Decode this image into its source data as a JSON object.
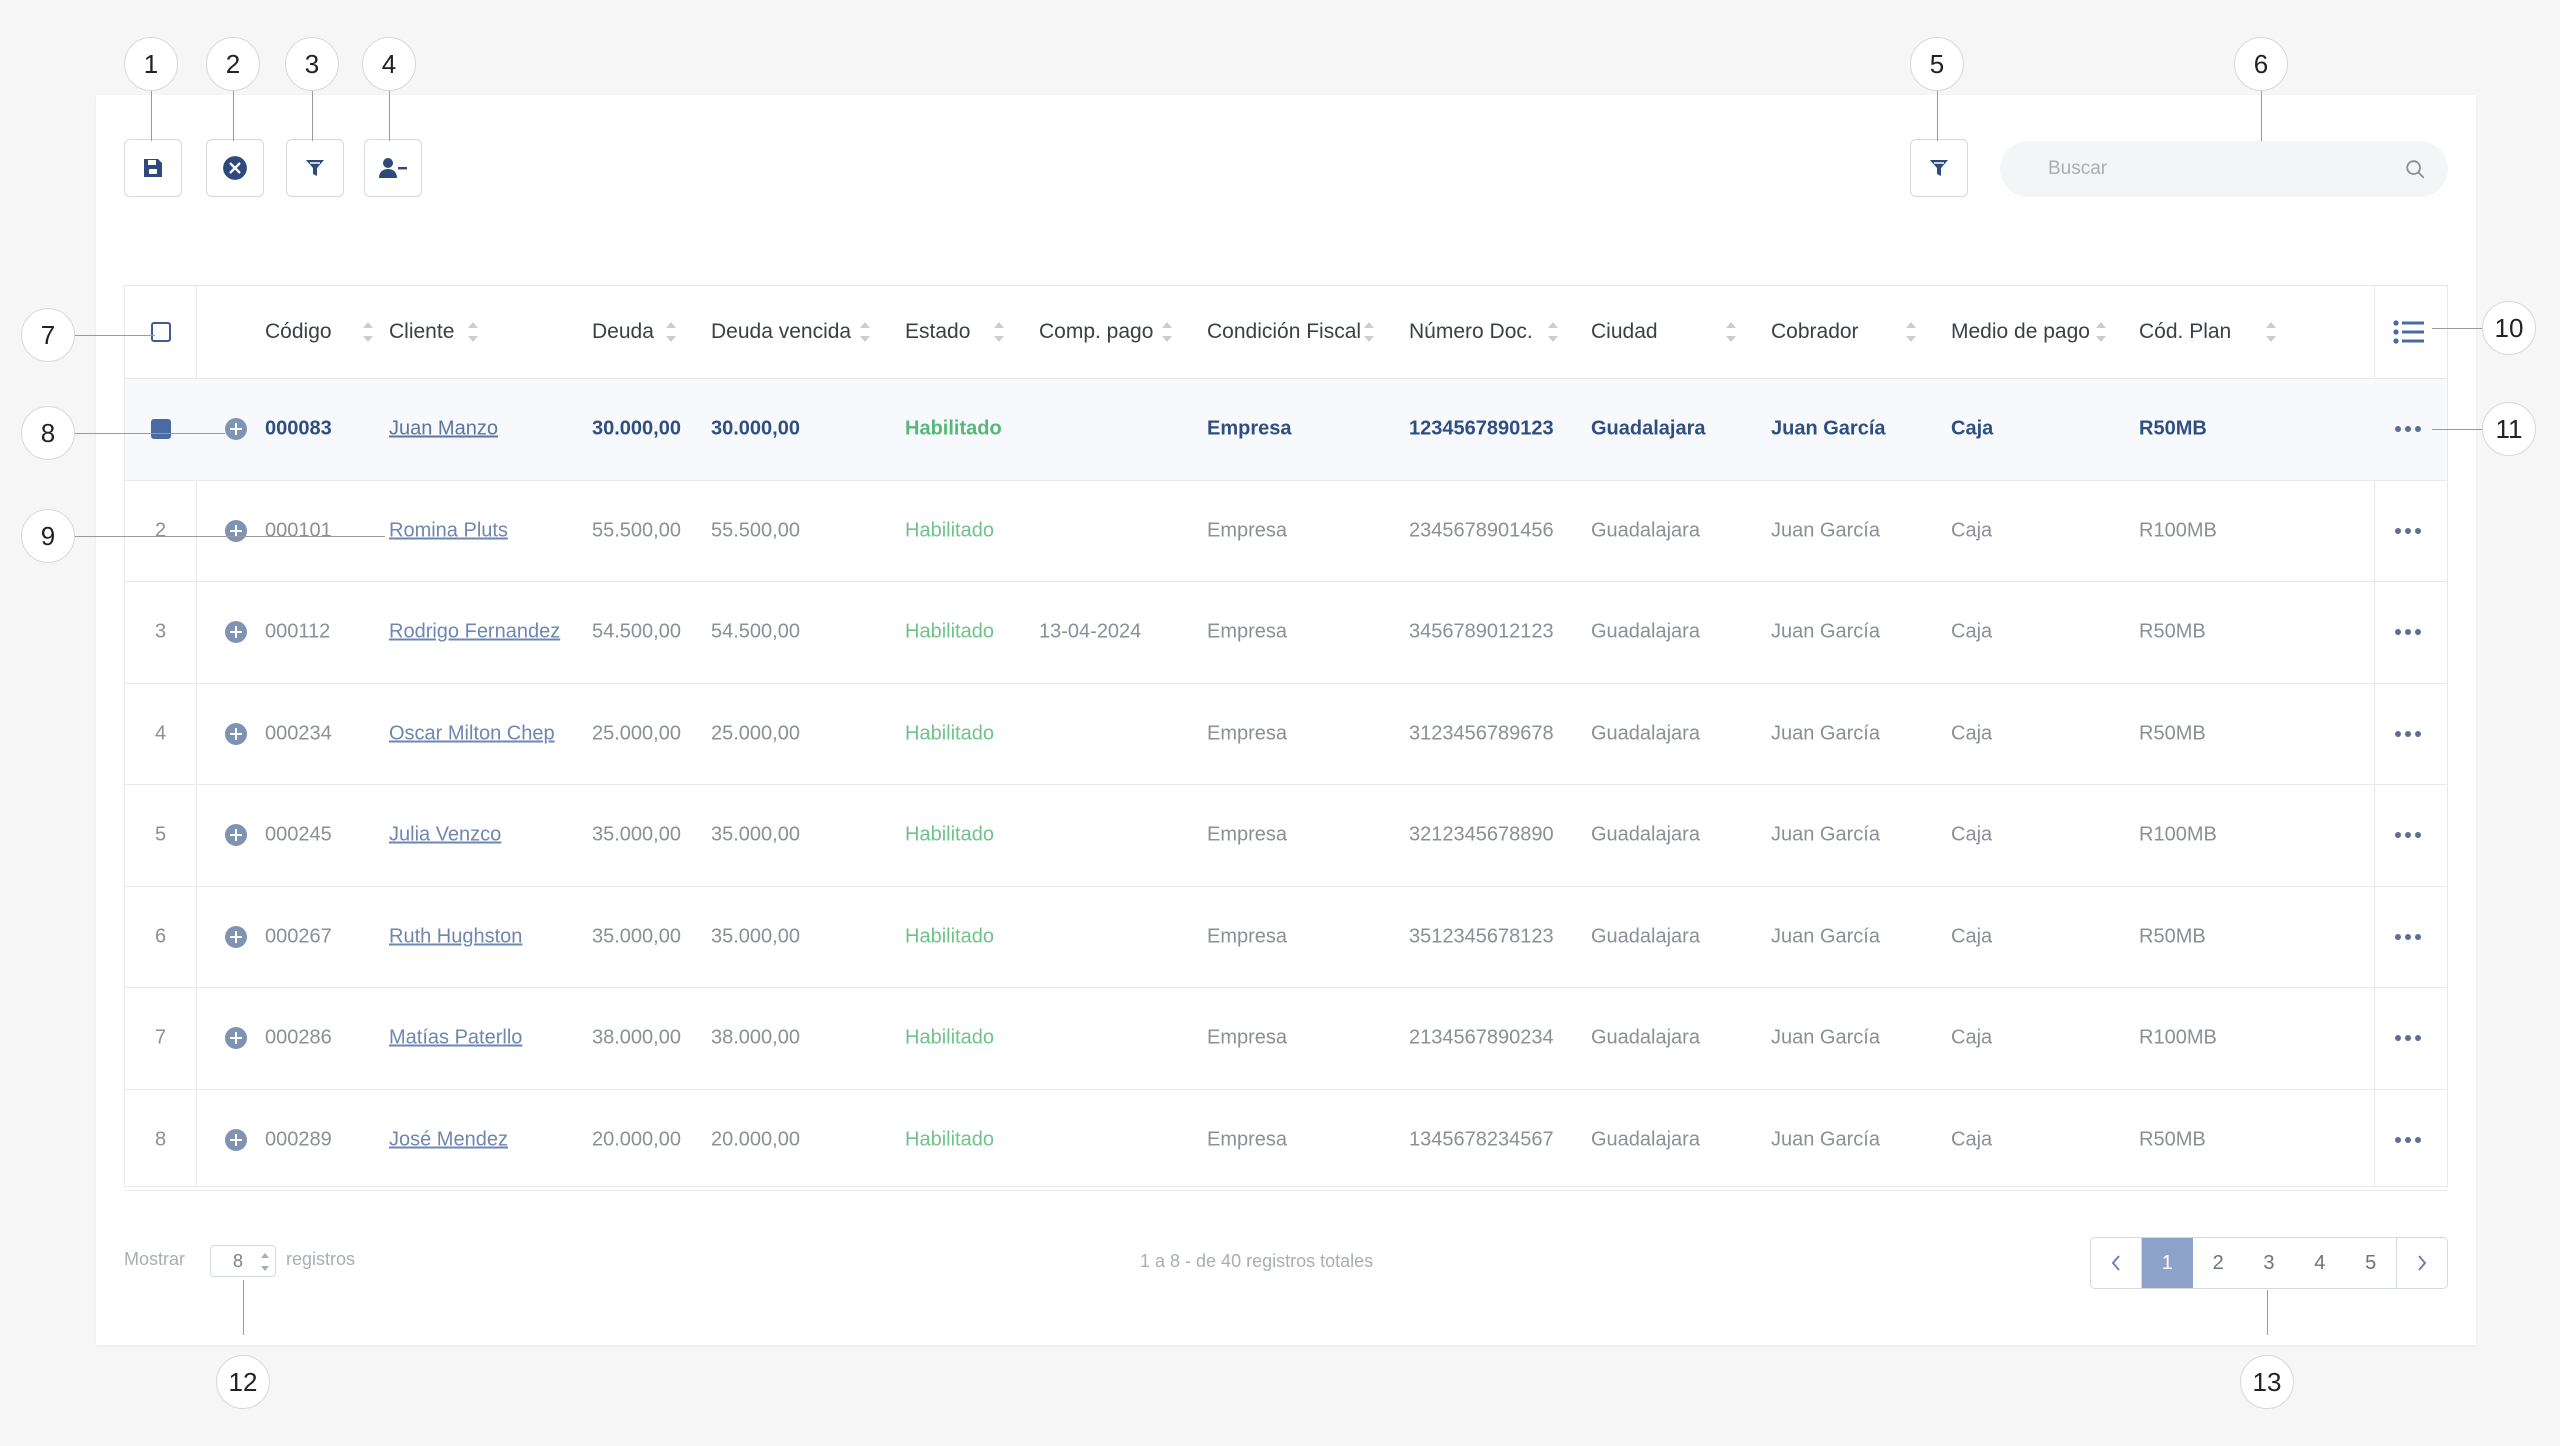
{
  "toolbar": {
    "save_icon": "floppy-disk-icon",
    "cancel_icon": "close-circle-icon",
    "filter_icon": "funnel-icon",
    "remove_user_icon": "user-minus-icon",
    "right_filter_icon": "funnel-icon"
  },
  "search": {
    "placeholder": "Buscar",
    "value": "",
    "icon": "search-icon"
  },
  "table": {
    "headers": [
      "Código",
      "Cliente",
      "Deuda",
      "Deuda vencida",
      "Estado",
      "Comp. pago",
      "Condición Fiscal",
      "Número Doc.",
      "Ciudad",
      "Cobrador",
      "Medio de pago",
      "Cód. Plan"
    ],
    "columns_menu_icon": "list-icon",
    "rows": [
      {
        "num": "",
        "selected": true,
        "codigo": "000083",
        "cliente": "Juan Manzo",
        "deuda": "30.000,00",
        "deuda_vencida": "30.000,00",
        "estado": "Habilitado",
        "comp_pago": "",
        "condicion": "Empresa",
        "documento": "1234567890123",
        "ciudad": "Guadalajara",
        "cobrador": "Juan García",
        "medio": "Caja",
        "plan": "R50MB"
      },
      {
        "num": "2",
        "selected": false,
        "codigo": "000101",
        "cliente": "Romina Pluts",
        "deuda": "55.500,00",
        "deuda_vencida": "55.500,00",
        "estado": "Habilitado",
        "comp_pago": "",
        "condicion": "Empresa",
        "documento": "2345678901456",
        "ciudad": "Guadalajara",
        "cobrador": "Juan García",
        "medio": "Caja",
        "plan": "R100MB"
      },
      {
        "num": "3",
        "selected": false,
        "codigo": "000112",
        "cliente": "Rodrigo Fernandez",
        "deuda": "54.500,00",
        "deuda_vencida": "54.500,00",
        "estado": "Habilitado",
        "comp_pago": "13-04-2024",
        "condicion": "Empresa",
        "documento": "3456789012123",
        "ciudad": "Guadalajara",
        "cobrador": "Juan García",
        "medio": "Caja",
        "plan": "R50MB"
      },
      {
        "num": "4",
        "selected": false,
        "codigo": "000234",
        "cliente": "Oscar Milton Chep",
        "deuda": "25.000,00",
        "deuda_vencida": "25.000,00",
        "estado": "Habilitado",
        "comp_pago": "",
        "condicion": "Empresa",
        "documento": "3123456789678",
        "ciudad": "Guadalajara",
        "cobrador": "Juan García",
        "medio": "Caja",
        "plan": "R50MB"
      },
      {
        "num": "5",
        "selected": false,
        "codigo": "000245",
        "cliente": "Julia Venzco",
        "deuda": "35.000,00",
        "deuda_vencida": "35.000,00",
        "estado": "Habilitado",
        "comp_pago": "",
        "condicion": "Empresa",
        "documento": "3212345678890",
        "ciudad": "Guadalajara",
        "cobrador": "Juan García",
        "medio": "Caja",
        "plan": "R100MB"
      },
      {
        "num": "6",
        "selected": false,
        "codigo": "000267",
        "cliente": "Ruth Hughston",
        "deuda": "35.000,00",
        "deuda_vencida": "35.000,00",
        "estado": "Habilitado",
        "comp_pago": "",
        "condicion": "Empresa",
        "documento": "3512345678123",
        "ciudad": "Guadalajara",
        "cobrador": "Juan García",
        "medio": "Caja",
        "plan": "R50MB"
      },
      {
        "num": "7",
        "selected": false,
        "codigo": "000286",
        "cliente": "Matías Paterllo",
        "deuda": "38.000,00",
        "deuda_vencida": "38.000,00",
        "estado": "Habilitado",
        "comp_pago": "",
        "condicion": "Empresa",
        "documento": "2134567890234",
        "ciudad": "Guadalajara",
        "cobrador": "Juan García",
        "medio": "Caja",
        "plan": "R100MB"
      },
      {
        "num": "8",
        "selected": false,
        "codigo": "000289",
        "cliente": "José Mendez",
        "deuda": "20.000,00",
        "deuda_vencida": "20.000,00",
        "estado": "Habilitado",
        "comp_pago": "",
        "condicion": "Empresa",
        "documento": "1345678234567",
        "ciudad": "Guadalajara",
        "cobrador": "Juan García",
        "medio": "Caja",
        "plan": "R50MB"
      }
    ]
  },
  "footer": {
    "show_label": "Mostrar",
    "page_size": "8",
    "records_label": "registros",
    "total_text": "1 a 8 - de 40 registros totales",
    "pages": [
      "1",
      "2",
      "3",
      "4",
      "5"
    ],
    "active_page": "1"
  },
  "callouts": [
    "1",
    "2",
    "3",
    "4",
    "5",
    "6",
    "7",
    "8",
    "9",
    "10",
    "11",
    "12",
    "13"
  ],
  "colors": {
    "accent": "#3d5c93",
    "status_green": "#6fc38a",
    "link": "#6e86b2",
    "pager_active": "#8da2c8"
  }
}
